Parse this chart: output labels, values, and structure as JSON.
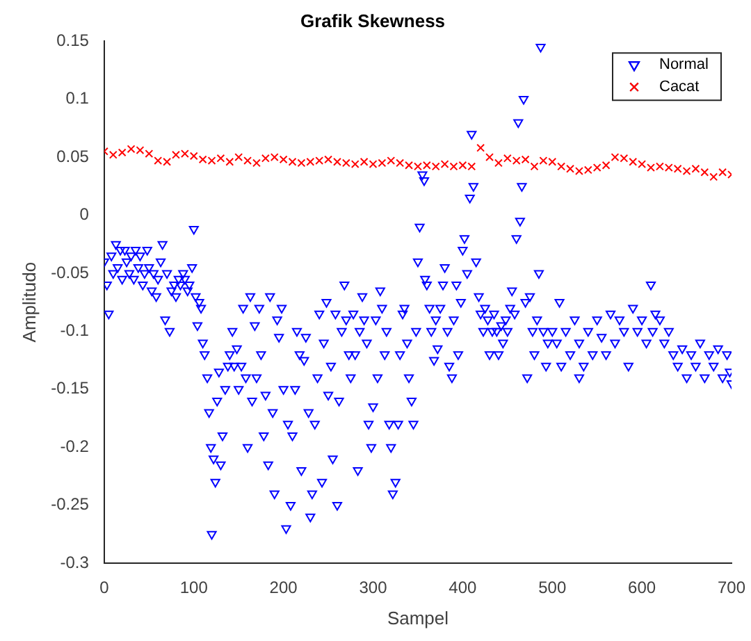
{
  "chart_data": {
    "type": "scatter",
    "title": "Grafik Skewness",
    "xlabel": "Sampel",
    "ylabel": "Amplitudo",
    "xlim": [
      0,
      700
    ],
    "xticks": [
      0,
      100,
      200,
      300,
      400,
      500,
      600,
      700
    ],
    "ylim": [
      -0.3,
      0.15
    ],
    "yticks": [
      -0.3,
      -0.25,
      -0.2,
      -0.15,
      -0.1,
      -0.05,
      0,
      0.05,
      0.1,
      0.15
    ],
    "grid": false,
    "legend": "top right",
    "series": [
      {
        "name": "Normal",
        "color": "#0000ff",
        "marker": "triangle",
        "x": [
          0,
          3,
          5,
          8,
          10,
          13,
          15,
          18,
          20,
          23,
          25,
          28,
          30,
          33,
          35,
          38,
          40,
          43,
          45,
          48,
          50,
          53,
          55,
          58,
          60,
          63,
          65,
          68,
          70,
          73,
          75,
          78,
          80,
          83,
          85,
          88,
          90,
          93,
          95,
          98,
          100,
          102,
          104,
          106,
          108,
          110,
          112,
          115,
          117,
          119,
          120,
          122,
          124,
          126,
          128,
          130,
          132,
          135,
          138,
          140,
          143,
          145,
          148,
          150,
          153,
          155,
          158,
          160,
          163,
          165,
          168,
          170,
          173,
          175,
          178,
          180,
          183,
          185,
          188,
          190,
          193,
          195,
          198,
          200,
          203,
          205,
          208,
          210,
          213,
          215,
          218,
          220,
          223,
          225,
          228,
          230,
          232,
          235,
          238,
          240,
          243,
          245,
          248,
          250,
          253,
          255,
          258,
          260,
          262,
          265,
          268,
          270,
          273,
          275,
          278,
          280,
          283,
          285,
          288,
          290,
          293,
          295,
          298,
          300,
          303,
          305,
          308,
          310,
          313,
          315,
          318,
          320,
          322,
          325,
          328,
          330,
          333,
          335,
          338,
          340,
          343,
          345,
          348,
          350,
          352,
          355,
          357,
          358,
          360,
          363,
          365,
          368,
          370,
          372,
          375,
          378,
          380,
          383,
          385,
          388,
          390,
          393,
          395,
          398,
          400,
          402,
          405,
          408,
          410,
          412,
          415,
          418,
          420,
          423,
          425,
          428,
          430,
          433,
          435,
          438,
          440,
          443,
          445,
          448,
          450,
          453,
          455,
          458,
          460,
          462,
          464,
          466,
          468,
          470,
          472,
          475,
          478,
          480,
          483,
          485,
          487,
          490,
          493,
          495,
          500,
          505,
          508,
          510,
          515,
          520,
          525,
          530,
          530,
          535,
          540,
          545,
          550,
          555,
          560,
          565,
          570,
          575,
          580,
          585,
          590,
          595,
          600,
          605,
          610,
          612,
          615,
          620,
          625,
          630,
          635,
          640,
          645,
          650,
          655,
          660,
          665,
          670,
          675,
          680,
          685,
          690,
          695,
          698,
          700
        ],
        "values": [
          -0.04,
          -0.06,
          -0.085,
          -0.035,
          -0.05,
          -0.025,
          -0.045,
          -0.03,
          -0.055,
          -0.03,
          -0.04,
          -0.05,
          -0.035,
          -0.055,
          -0.03,
          -0.045,
          -0.035,
          -0.06,
          -0.05,
          -0.03,
          -0.045,
          -0.065,
          -0.05,
          -0.07,
          -0.055,
          -0.04,
          -0.025,
          -0.09,
          -0.05,
          -0.1,
          -0.065,
          -0.06,
          -0.07,
          -0.055,
          -0.06,
          -0.05,
          -0.055,
          -0.065,
          -0.06,
          -0.045,
          -0.012,
          -0.07,
          -0.095,
          -0.075,
          -0.08,
          -0.11,
          -0.12,
          -0.14,
          -0.17,
          -0.2,
          -0.275,
          -0.21,
          -0.23,
          -0.16,
          -0.135,
          -0.215,
          -0.19,
          -0.15,
          -0.13,
          -0.12,
          -0.1,
          -0.13,
          -0.115,
          -0.15,
          -0.13,
          -0.08,
          -0.14,
          -0.2,
          -0.07,
          -0.16,
          -0.095,
          -0.14,
          -0.08,
          -0.12,
          -0.19,
          -0.155,
          -0.215,
          -0.07,
          -0.17,
          -0.24,
          -0.09,
          -0.105,
          -0.08,
          -0.15,
          -0.27,
          -0.18,
          -0.25,
          -0.19,
          -0.15,
          -0.1,
          -0.12,
          -0.22,
          -0.125,
          -0.105,
          -0.17,
          -0.26,
          -0.24,
          -0.18,
          -0.14,
          -0.085,
          -0.23,
          -0.11,
          -0.075,
          -0.155,
          -0.13,
          -0.21,
          -0.085,
          -0.25,
          -0.16,
          -0.1,
          -0.06,
          -0.09,
          -0.12,
          -0.14,
          -0.085,
          -0.12,
          -0.22,
          -0.1,
          -0.07,
          -0.09,
          -0.11,
          -0.18,
          -0.2,
          -0.165,
          -0.09,
          -0.14,
          -0.065,
          -0.08,
          -0.12,
          -0.1,
          -0.18,
          -0.2,
          -0.24,
          -0.23,
          -0.18,
          -0.12,
          -0.085,
          -0.08,
          -0.11,
          -0.14,
          -0.16,
          -0.18,
          -0.1,
          -0.04,
          -0.01,
          0.035,
          0.03,
          -0.055,
          -0.06,
          -0.08,
          -0.1,
          -0.125,
          -0.09,
          -0.115,
          -0.08,
          -0.06,
          -0.045,
          -0.1,
          -0.13,
          -0.14,
          -0.09,
          -0.06,
          -0.12,
          -0.075,
          -0.03,
          -0.02,
          -0.05,
          0.015,
          0.07,
          0.025,
          -0.04,
          -0.07,
          -0.085,
          -0.1,
          -0.08,
          -0.09,
          -0.12,
          -0.1,
          -0.085,
          -0.1,
          -0.12,
          -0.095,
          -0.11,
          -0.09,
          -0.1,
          -0.08,
          -0.065,
          -0.085,
          -0.02,
          0.08,
          -0.005,
          0.025,
          0.1,
          -0.075,
          -0.14,
          -0.07,
          -0.1,
          -0.12,
          -0.09,
          -0.05,
          0.145,
          -0.1,
          -0.13,
          -0.11,
          -0.1,
          -0.11,
          -0.075,
          -0.13,
          -0.1,
          -0.12,
          -0.09,
          -0.11,
          -0.14,
          -0.13,
          -0.1,
          -0.12,
          -0.09,
          -0.105,
          -0.12,
          -0.085,
          -0.11,
          -0.09,
          -0.1,
          -0.13,
          -0.08,
          -0.1,
          -0.09,
          -0.11,
          -0.06,
          -0.1,
          -0.085,
          -0.09,
          -0.11,
          -0.1,
          -0.12,
          -0.13,
          -0.115,
          -0.14,
          -0.12,
          -0.13,
          -0.11,
          -0.14,
          -0.12,
          -0.13,
          -0.115,
          -0.14,
          -0.12,
          -0.135,
          -0.145
        ]
      },
      {
        "name": "Cacat",
        "color": "#ff0000",
        "marker": "cross",
        "x": [
          0,
          10,
          20,
          30,
          40,
          50,
          60,
          70,
          80,
          90,
          100,
          110,
          120,
          130,
          140,
          150,
          160,
          170,
          180,
          190,
          200,
          210,
          220,
          230,
          240,
          250,
          260,
          270,
          280,
          290,
          300,
          310,
          320,
          330,
          340,
          350,
          360,
          370,
          380,
          390,
          400,
          410,
          420,
          430,
          440,
          450,
          460,
          470,
          480,
          490,
          500,
          510,
          520,
          530,
          540,
          550,
          560,
          570,
          580,
          590,
          600,
          610,
          620,
          630,
          640,
          650,
          660,
          670,
          680,
          690,
          700
        ],
        "values": [
          0.055,
          0.052,
          0.054,
          0.057,
          0.056,
          0.053,
          0.047,
          0.046,
          0.052,
          0.053,
          0.051,
          0.048,
          0.047,
          0.049,
          0.046,
          0.05,
          0.047,
          0.045,
          0.049,
          0.05,
          0.048,
          0.046,
          0.045,
          0.046,
          0.047,
          0.048,
          0.046,
          0.045,
          0.044,
          0.046,
          0.044,
          0.045,
          0.047,
          0.045,
          0.043,
          0.042,
          0.043,
          0.042,
          0.044,
          0.042,
          0.043,
          0.042,
          0.058,
          0.05,
          0.045,
          0.049,
          0.047,
          0.048,
          0.042,
          0.047,
          0.046,
          0.042,
          0.04,
          0.038,
          0.039,
          0.041,
          0.043,
          0.05,
          0.049,
          0.046,
          0.044,
          0.041,
          0.042,
          0.041,
          0.04,
          0.038,
          0.04,
          0.037,
          0.033,
          0.037,
          0.035
        ]
      }
    ]
  }
}
